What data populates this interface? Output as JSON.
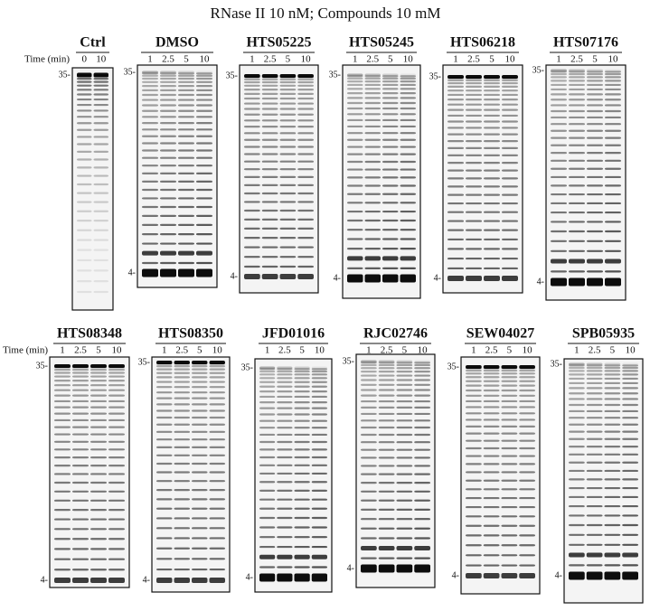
{
  "title": "RNase II 10 nM; Compounds 10 mM",
  "rows": [
    {
      "time_label": "Time (min)",
      "panels": [
        {
          "name": "Ctrl",
          "lanes": [
            "0",
            "10"
          ],
          "markers": [
            "35-"
          ]
        },
        {
          "name": "DMSO",
          "lanes": [
            "1",
            "2.5",
            "5",
            "10"
          ],
          "markers": [
            "35-",
            "4-"
          ]
        },
        {
          "name": "HTS05225",
          "lanes": [
            "1",
            "2.5",
            "5",
            "10"
          ],
          "markers": [
            "35-",
            "4-"
          ]
        },
        {
          "name": "HTS05245",
          "lanes": [
            "1",
            "2.5",
            "5",
            "10"
          ],
          "markers": [
            "35-",
            "4-"
          ]
        },
        {
          "name": "HTS06218",
          "lanes": [
            "1",
            "2.5",
            "5",
            "10"
          ],
          "markers": [
            "35-",
            "4-"
          ]
        },
        {
          "name": "HTS07176",
          "lanes": [
            "1",
            "2.5",
            "5",
            "10"
          ],
          "markers": [
            "35-",
            "4-"
          ]
        }
      ]
    },
    {
      "time_label": "Time (min)",
      "panels": [
        {
          "name": "HTS08348",
          "lanes": [
            "1",
            "2.5",
            "5",
            "10"
          ],
          "markers": [
            "35-",
            "4-"
          ]
        },
        {
          "name": "HTS08350",
          "lanes": [
            "1",
            "2.5",
            "5",
            "10"
          ],
          "markers": [
            "35-",
            "4-"
          ]
        },
        {
          "name": "JFD01016",
          "lanes": [
            "1",
            "2.5",
            "5",
            "10"
          ],
          "markers": [
            "35-",
            "4-"
          ]
        },
        {
          "name": "RJC02746",
          "lanes": [
            "1",
            "2.5",
            "5",
            "10"
          ],
          "markers": [
            "35-",
            "4-"
          ]
        },
        {
          "name": "SEW04027",
          "lanes": [
            "1",
            "2.5",
            "5",
            "10"
          ],
          "markers": [
            "35-",
            "4-"
          ]
        },
        {
          "name": "SPB05935",
          "lanes": [
            "1",
            "2.5",
            "5",
            "10"
          ],
          "markers": [
            "35-",
            "4-"
          ]
        }
      ]
    }
  ]
}
